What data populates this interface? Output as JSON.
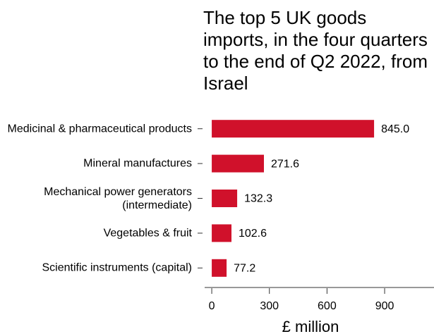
{
  "chart_data": {
    "type": "hbar",
    "title": "The top 5 UK goods imports, in the four quarters to the end of Q2 2022, from Israel",
    "categories": [
      "Medicinal & pharmaceutical products",
      "Mineral manufactures",
      "Mechanical power generators (intermediate)",
      "Vegetables & fruit",
      "Scientific instruments (capital)"
    ],
    "values": [
      845.0,
      271.6,
      132.3,
      102.6,
      77.2
    ],
    "value_labels": [
      "845.0",
      "271.6",
      "132.3",
      "102.6",
      "77.2"
    ],
    "color": "#d0112b",
    "xlabel": "£ million",
    "xlim": [
      -37,
      1157
    ],
    "xticks": [
      0,
      300,
      600,
      900
    ]
  }
}
